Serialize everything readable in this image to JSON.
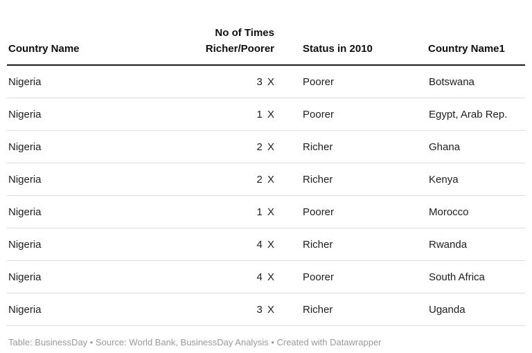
{
  "page": {
    "background": "#ffffff"
  },
  "colors": {
    "header_rule": "#1a1a1a",
    "row_separator": "#dddddd",
    "header_text": "#0f0f0f",
    "cell_text": "#1d1d1d",
    "footer_text": "#9a9a9a"
  },
  "table": {
    "columns": [
      {
        "id": "country-name",
        "align": "left",
        "lines": [
          "Country Name"
        ]
      },
      {
        "id": "times-richer-poorer",
        "align": "right",
        "lines": [
          "No of Times",
          "Richer/Poorer"
        ]
      },
      {
        "id": "status-in-2010",
        "align": "left",
        "lines": [
          "Status in 2010"
        ]
      },
      {
        "id": "country-name1",
        "align": "left",
        "lines": [
          "Country Name1"
        ]
      }
    ],
    "rows": [
      [
        "Nigeria",
        "3 X",
        "Poorer",
        "Botswana"
      ],
      [
        "Nigeria",
        "1 X",
        "Poorer",
        "Egypt, Arab Rep."
      ],
      [
        "Nigeria",
        "2 X",
        "Richer",
        "Ghana"
      ],
      [
        "Nigeria",
        "2 X",
        "Richer",
        "Kenya"
      ],
      [
        "Nigeria",
        "1 X",
        "Poorer",
        "Morocco"
      ],
      [
        "Nigeria",
        "4 X",
        "Richer",
        "Rwanda"
      ],
      [
        "Nigeria",
        "4 X",
        "Poorer",
        "South Africa"
      ],
      [
        "Nigeria",
        "3 X",
        "Richer",
        "Uganda"
      ]
    ]
  },
  "footer": {
    "attribution": "Table: BusinessDay • Source: World Bank, BusinessDay Analysis • Created with Datawrapper"
  },
  "chart_data": {
    "type": "table",
    "columns": [
      "Country Name",
      "No of Times Richer/Poorer",
      "Status in 2010",
      "Country Name1"
    ],
    "rows": [
      [
        "Nigeria",
        "3 X",
        "Poorer",
        "Botswana"
      ],
      [
        "Nigeria",
        "1 X",
        "Poorer",
        "Egypt, Arab Rep."
      ],
      [
        "Nigeria",
        "2 X",
        "Richer",
        "Ghana"
      ],
      [
        "Nigeria",
        "2 X",
        "Richer",
        "Kenya"
      ],
      [
        "Nigeria",
        "1 X",
        "Poorer",
        "Morocco"
      ],
      [
        "Nigeria",
        "4 X",
        "Richer",
        "Rwanda"
      ],
      [
        "Nigeria",
        "4 X",
        "Poorer",
        "South Africa"
      ],
      [
        "Nigeria",
        "3 X",
        "Richer",
        "Uganda"
      ]
    ],
    "notes": "Table: BusinessDay • Source: World Bank, BusinessDay Analysis • Created with Datawrapper",
    "layout_hints": {
      "column_alignments": [
        "left",
        "right",
        "left",
        "left"
      ],
      "header_rule": "thick dark line under header",
      "row_rules": "thin light gray lines between rows and after last row",
      "grid": "horizontal only"
    }
  }
}
